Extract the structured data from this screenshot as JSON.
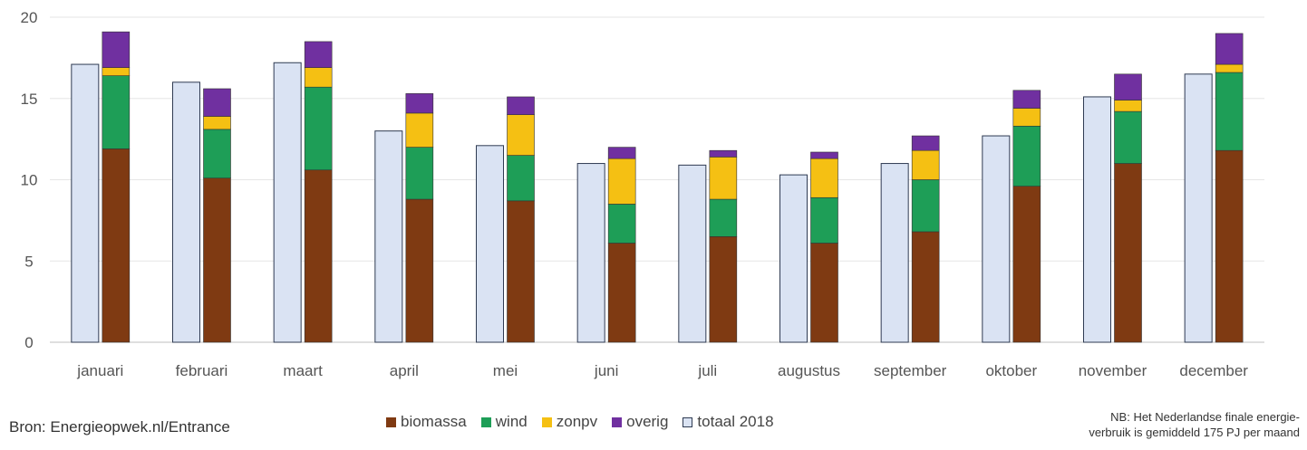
{
  "chart_data": {
    "type": "bar",
    "categories": [
      "januari",
      "februari",
      "maart",
      "april",
      "mei",
      "juni",
      "juli",
      "augustus",
      "september",
      "oktober",
      "november",
      "december"
    ],
    "ylim": [
      0,
      20
    ],
    "yticks": [
      0,
      5,
      10,
      15,
      20
    ],
    "grid": true,
    "legend_position": "bottom",
    "stacked_series": [
      {
        "name": "biomassa",
        "color": "#7f3a12",
        "values": [
          11.9,
          10.1,
          10.6,
          8.8,
          8.7,
          6.1,
          6.5,
          6.1,
          6.8,
          9.6,
          11.0,
          11.8
        ]
      },
      {
        "name": "wind",
        "color": "#1e9e57",
        "values": [
          4.5,
          3.0,
          5.1,
          3.2,
          2.8,
          2.4,
          2.3,
          2.8,
          3.2,
          3.7,
          3.2,
          4.8
        ]
      },
      {
        "name": "zonpv",
        "color": "#f5c013",
        "values": [
          0.5,
          0.8,
          1.2,
          2.1,
          2.5,
          2.8,
          2.6,
          2.4,
          1.8,
          1.1,
          0.7,
          0.5
        ]
      },
      {
        "name": "overig",
        "color": "#7030a0",
        "values": [
          2.2,
          1.7,
          1.6,
          1.2,
          1.1,
          0.7,
          0.4,
          0.4,
          0.9,
          1.1,
          1.6,
          1.9
        ]
      }
    ],
    "comparison_series": {
      "name": "totaal 2018",
      "color": "#dae3f3",
      "stroke": "#2f3b52",
      "values": [
        17.1,
        16.0,
        17.2,
        13.0,
        12.1,
        11.0,
        10.9,
        10.3,
        11.0,
        12.7,
        15.1,
        16.5
      ]
    }
  },
  "footer": {
    "source": "Bron: Energieopwek.nl/Entrance",
    "note_line1": "NB: Het Nederlandse finale energie-",
    "note_line2": "verbruik is gemiddeld 175 PJ per maand"
  }
}
